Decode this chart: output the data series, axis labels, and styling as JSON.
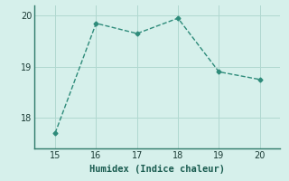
{
  "x": [
    15,
    16,
    17,
    18,
    19,
    20
  ],
  "y": [
    17.7,
    19.85,
    19.65,
    19.95,
    18.9,
    18.75
  ],
  "line_color": "#2e8b7a",
  "marker": "D",
  "marker_size": 2.5,
  "linewidth": 1.0,
  "xlabel": "Humidex (Indice chaleur)",
  "xlabel_fontsize": 7.5,
  "xlim": [
    14.5,
    20.5
  ],
  "ylim": [
    17.4,
    20.2
  ],
  "yticks": [
    18,
    19,
    20
  ],
  "xticks": [
    15,
    16,
    17,
    18,
    19,
    20
  ],
  "background_color": "#d6f0eb",
  "grid_color": "#b0d8d0",
  "axis_color": "#2e7a6a",
  "tick_fontsize": 7,
  "linestyle": "--"
}
